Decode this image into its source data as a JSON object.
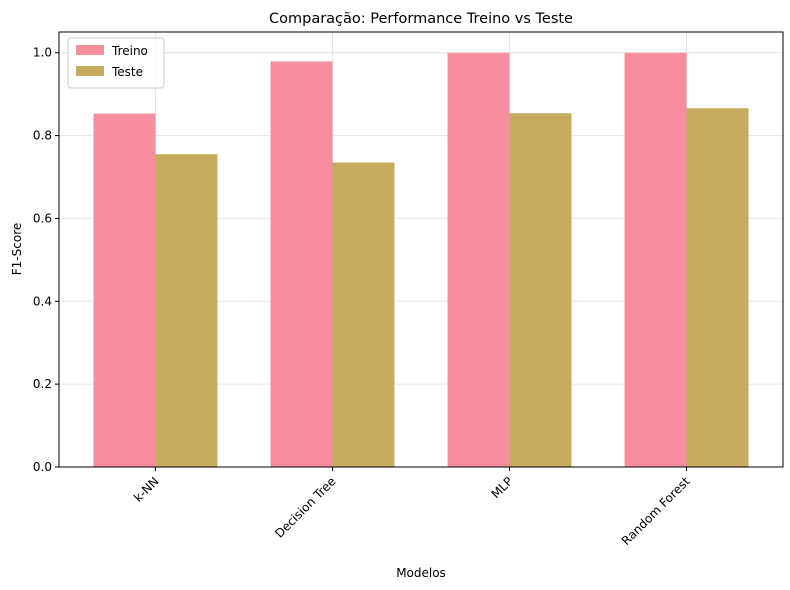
{
  "chart_data": {
    "type": "bar",
    "title": "Comparação: Performance Treino vs Teste",
    "xlabel": "Modelos",
    "ylabel": "F1-Score",
    "categories": [
      "k-NN",
      "Decision Tree",
      "MLP",
      "Random Forest"
    ],
    "series": [
      {
        "name": "Treino",
        "values": [
          0.853,
          0.979,
          1.0,
          1.0
        ],
        "color": "#f68ea0"
      },
      {
        "name": "Teste",
        "values": [
          0.755,
          0.735,
          0.854,
          0.866
        ],
        "color": "#c7ab5e"
      }
    ],
    "ylim": [
      0,
      1.05
    ],
    "yticks": [
      "0.0",
      "0.2",
      "0.4",
      "0.6",
      "0.8",
      "1.0"
    ],
    "grid": true,
    "legend_position": "top-left",
    "xtick_rotation": 45
  }
}
